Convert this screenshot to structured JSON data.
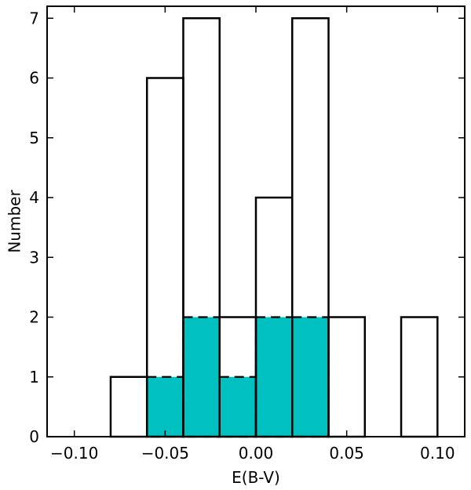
{
  "chart_data": {
    "type": "bar",
    "xlabel": "E(B-V)",
    "ylabel": "Number",
    "xlim": [
      -0.115,
      0.115
    ],
    "ylim": [
      0,
      7.2
    ],
    "x_ticks": [
      -0.1,
      -0.05,
      0.0,
      0.05,
      0.1
    ],
    "x_tick_labels": [
      "−0.10",
      "−0.05",
      "0.00",
      "0.05",
      "0.10"
    ],
    "y_ticks": [
      0,
      1,
      2,
      3,
      4,
      5,
      6,
      7
    ],
    "y_tick_labels": [
      "0",
      "1",
      "2",
      "3",
      "4",
      "5",
      "6",
      "7"
    ],
    "grid": false,
    "bin_edges": [
      -0.1,
      -0.08,
      -0.06,
      -0.04,
      -0.02,
      0.0,
      0.02,
      0.04,
      0.06,
      0.08,
      0.1
    ],
    "series": [
      {
        "style": "outline",
        "values": [
          0,
          1,
          6,
          7,
          2,
          4,
          7,
          2,
          0,
          2
        ],
        "color": "#000000"
      },
      {
        "style": "filled-dashed",
        "values": [
          0,
          0,
          1,
          2,
          1,
          2,
          2,
          0,
          0,
          0
        ],
        "color": "#00c0c0"
      }
    ]
  }
}
